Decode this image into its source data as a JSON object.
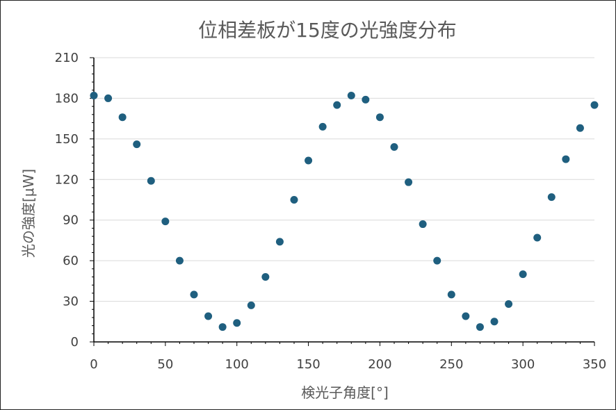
{
  "chart_data": {
    "type": "scatter",
    "title": "位相差板が15度の光強度分布",
    "xlabel": "検光子角度[°]",
    "ylabel": "光の強度[μW]",
    "xlim": [
      0,
      350
    ],
    "ylim": [
      0,
      210
    ],
    "x_ticks": [
      0,
      50,
      100,
      150,
      200,
      250,
      300,
      350
    ],
    "y_ticks": [
      0,
      30,
      60,
      90,
      120,
      150,
      180,
      210
    ],
    "grid": "horizontal",
    "legend": "none",
    "marker_color": "#1f5f7f",
    "series": [
      {
        "x": [
          0,
          10,
          20,
          30,
          40,
          50,
          60,
          70,
          80,
          90,
          100,
          110,
          120,
          130,
          140,
          150,
          160,
          170,
          180,
          190,
          200,
          210,
          220,
          230,
          240,
          250,
          260,
          270,
          280,
          290,
          300,
          310,
          320,
          330,
          340,
          350
        ],
        "y": [
          182,
          180,
          166,
          146,
          119,
          89,
          60,
          35,
          19,
          11,
          14,
          27,
          48,
          74,
          105,
          134,
          159,
          175,
          182,
          179,
          166,
          144,
          118,
          87,
          60,
          35,
          19,
          11,
          15,
          28,
          50,
          77,
          107,
          135,
          158,
          175
        ]
      }
    ]
  }
}
